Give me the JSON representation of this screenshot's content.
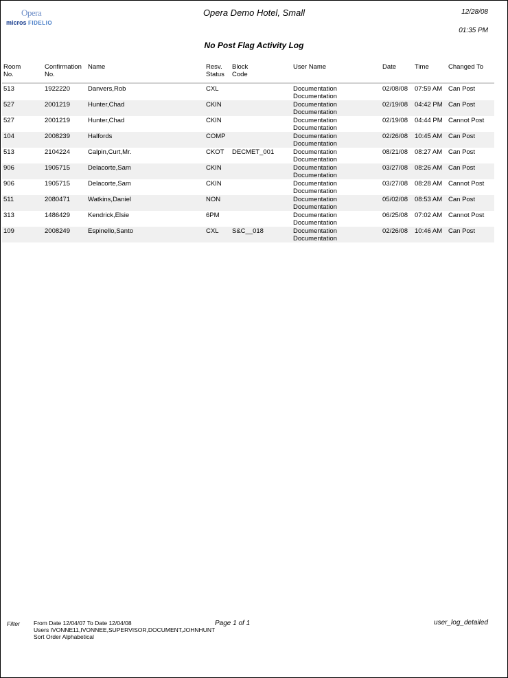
{
  "header": {
    "logo_text": "Opera micros FIDELIO",
    "hotel": "Opera Demo Hotel, Small",
    "date": "12/28/08",
    "time": "01:35 PM",
    "title": "No Post Flag Activity Log"
  },
  "columns": [
    [
      "Room",
      "No."
    ],
    [
      "Confirmation",
      "No."
    ],
    [
      "Name",
      ""
    ],
    [
      "Resv.",
      "Status"
    ],
    [
      "Block",
      "Code"
    ],
    [
      "User Name",
      ""
    ],
    [
      "Date",
      ""
    ],
    [
      "Time",
      ""
    ],
    [
      "Changed To",
      ""
    ]
  ],
  "rows": [
    [
      "513",
      "1922220",
      "Danvers,Rob",
      "CXL",
      "",
      "Documentation",
      "Documentation",
      "02/08/08",
      "07:59 AM",
      "Can Post"
    ],
    [
      "527",
      "2001219",
      "Hunter,Chad",
      "CKIN",
      "",
      "Documentation",
      "Documentation",
      "02/19/08",
      "04:42 PM",
      "Can Post"
    ],
    [
      "527",
      "2001219",
      "Hunter,Chad",
      "CKIN",
      "",
      "Documentation",
      "Documentation",
      "02/19/08",
      "04:44 PM",
      "Cannot Post"
    ],
    [
      "104",
      "2008239",
      "Halfords",
      "COMP",
      "",
      "Documentation",
      "Documentation",
      "02/26/08",
      "10:45 AM",
      "Can Post"
    ],
    [
      "513",
      "2104224",
      "Calpin,Curt,Mr.",
      "CKOT",
      "DECMET_001",
      "Documentation",
      "Documentation",
      "08/21/08",
      "08:27 AM",
      "Can Post"
    ],
    [
      "906",
      "1905715",
      "Delacorte,Sam",
      "CKIN",
      "",
      "Documentation",
      "Documentation",
      "03/27/08",
      "08:26 AM",
      "Can Post"
    ],
    [
      "906",
      "1905715",
      "Delacorte,Sam",
      "CKIN",
      "",
      "Documentation",
      "Documentation",
      "03/27/08",
      "08:28 AM",
      "Cannot Post"
    ],
    [
      "511",
      "2080471",
      "Watkins,Daniel",
      "NON",
      "",
      "Documentation",
      "Documentation",
      "05/02/08",
      "08:53 AM",
      "Can Post"
    ],
    [
      "313",
      "1486429",
      "Kendrick,Elsie",
      "6PM",
      "",
      "Documentation",
      "Documentation",
      "06/25/08",
      "07:02 AM",
      "Cannot Post"
    ],
    [
      "109",
      "2008249",
      "Espinello,Santo",
      "CXL",
      "S&C__018",
      "Documentation",
      "Documentation",
      "02/26/08",
      "10:46 AM",
      "Can Post"
    ]
  ],
  "footer": {
    "filter_label": "Filter",
    "line1": "From Date 12/04/07   To Date 12/04/08",
    "line2": "Users IVONNE11,IVONNEE,SUPERVISOR,DOCUMENT,JOHNHUNT",
    "line3": "Sort Order Alphabetical",
    "page": "Page 1 of 1",
    "report_name": "user_log_detailed"
  }
}
